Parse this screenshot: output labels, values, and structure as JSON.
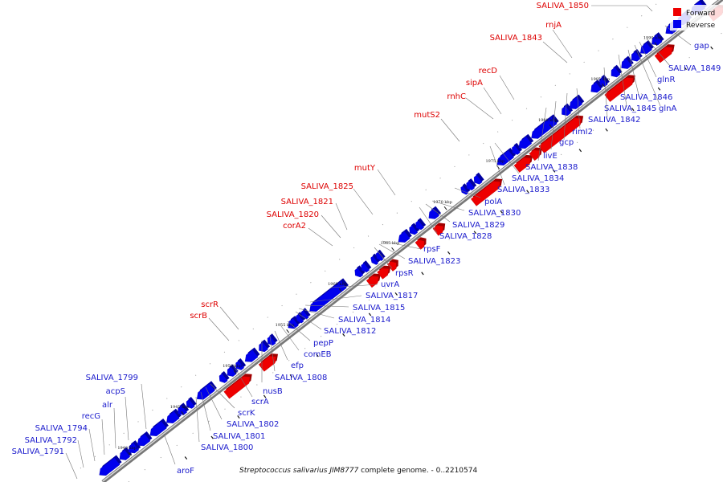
{
  "caption": {
    "organism": "Streptococcus salivarius JIM8777",
    "rest": " complete genome. - 0..2210574"
  },
  "legend": {
    "items": [
      {
        "label": "Forward",
        "color": "#ee0000"
      },
      {
        "label": "Reverse",
        "color": "#0000ee"
      }
    ]
  },
  "colors": {
    "forward": "#ee0000",
    "reverse": "#0000ee",
    "forward_label": "#dd0000",
    "reverse_label": "#1a1acc",
    "backbone": "#8c8c8c"
  },
  "ticks": [
    "1940 kbp",
    "1945 kbp",
    "1950 kbp",
    "1955 kbp",
    "1960 kbp",
    "1965 kbp",
    "1970 kbp",
    "1975 kbp",
    "1980 kbp",
    "1985 kbp",
    "1990 kbp"
  ],
  "forward_labels": [
    "SALIVA_1850",
    "rnjA",
    "SALIVA_1843",
    "recD",
    "sipA",
    "rnhC",
    "mutS2",
    "mutY",
    "SALIVA_1825",
    "SALIVA_1821",
    "SALIVA_1820",
    "corA2",
    "scrR",
    "scrB"
  ],
  "reverse_labels": [
    "gap",
    "SALIVA_1849",
    "glnR",
    "SALIVA_1846",
    "SALIVA_1845",
    "glnA",
    "SALIVA_1842",
    "rimI2",
    "gcp",
    "livE",
    "SALIVA_1838",
    "SALIVA_1834",
    "SALIVA_1833",
    "polA",
    "SALIVA_1830",
    "SALIVA_1829",
    "SALIVA_1828",
    "rpsF",
    "SALIVA_1823",
    "rpsR",
    "uvrA",
    "SALIVA_1817",
    "SALIVA_1815",
    "SALIVA_1814",
    "SALIVA_1812",
    "pepP",
    "comEB",
    "efp",
    "SALIVA_1808",
    "nusB",
    "scrA",
    "scrK",
    "SALIVA_1802",
    "SALIVA_1801",
    "SALIVA_1800",
    "aroF",
    "SALIVA_1799",
    "acpS",
    "alr",
    "recG",
    "SALIVA_1794",
    "SALIVA_1792",
    "SALIVA_1791"
  ]
}
